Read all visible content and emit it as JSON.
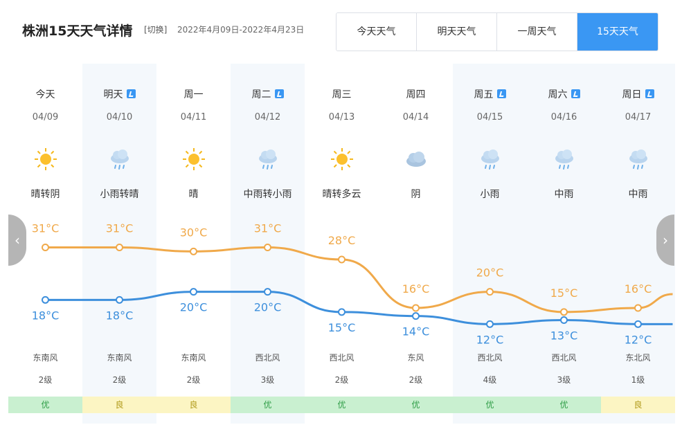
{
  "header": {
    "title": "株洲15天天气详情",
    "switch_label": "[切换]",
    "date_range": "2022年4月09日-2022年4月23日"
  },
  "tabs": [
    {
      "label": "今天天气",
      "active": false
    },
    {
      "label": "明天天气",
      "active": false
    },
    {
      "label": "一周天气",
      "active": false
    },
    {
      "label": "15天天气",
      "active": true
    }
  ],
  "nav": {
    "prev": "‹",
    "next": "›"
  },
  "colors": {
    "high": "#f0a94a",
    "low": "#3d8fdc",
    "accent": "#3a97f3"
  },
  "days": [
    {
      "name": "今天",
      "date": "04/09",
      "icon": "sun-icon",
      "weather": "晴转阴",
      "high": 31,
      "low": 18,
      "high_label": "31°C",
      "low_label": "18°C",
      "wind": "东南风",
      "level": "2级",
      "aqi": "优",
      "aqi_class": "good",
      "badge": false,
      "shade": false
    },
    {
      "name": "明天",
      "date": "04/10",
      "icon": "rain-cloud-icon",
      "weather": "小雨转晴",
      "high": 31,
      "low": 18,
      "high_label": "31°C",
      "low_label": "18°C",
      "wind": "东南风",
      "level": "2级",
      "aqi": "良",
      "aqi_class": "ok",
      "badge": true,
      "shade": true
    },
    {
      "name": "周一",
      "date": "04/11",
      "icon": "sun-icon",
      "weather": "晴",
      "high": 30,
      "low": 20,
      "high_label": "30°C",
      "low_label": "20°C",
      "wind": "东南风",
      "level": "2级",
      "aqi": "良",
      "aqi_class": "ok",
      "badge": false,
      "shade": false
    },
    {
      "name": "周二",
      "date": "04/12",
      "icon": "rain-cloud-icon",
      "weather": "中雨转小雨",
      "high": 31,
      "low": 20,
      "high_label": "31°C",
      "low_label": "20°C",
      "wind": "西北风",
      "level": "3级",
      "aqi": "优",
      "aqi_class": "good",
      "badge": true,
      "shade": true
    },
    {
      "name": "周三",
      "date": "04/13",
      "icon": "sun-icon",
      "weather": "晴转多云",
      "high": 28,
      "low": 15,
      "high_label": "28°C",
      "low_label": "15°C",
      "wind": "西北风",
      "level": "2级",
      "aqi": "优",
      "aqi_class": "good",
      "badge": false,
      "shade": false
    },
    {
      "name": "周四",
      "date": "04/14",
      "icon": "cloud-icon",
      "weather": "阴",
      "high": 16,
      "low": 14,
      "high_label": "16°C",
      "low_label": "14°C",
      "wind": "东风",
      "level": "2级",
      "aqi": "优",
      "aqi_class": "good",
      "badge": false,
      "shade": false
    },
    {
      "name": "周五",
      "date": "04/15",
      "icon": "rain-cloud-icon",
      "weather": "小雨",
      "high": 20,
      "low": 12,
      "high_label": "20°C",
      "low_label": "12°C",
      "wind": "西北风",
      "level": "4级",
      "aqi": "优",
      "aqi_class": "good",
      "badge": true,
      "shade": true
    },
    {
      "name": "周六",
      "date": "04/16",
      "icon": "rain-cloud-icon",
      "weather": "中雨",
      "high": 15,
      "low": 13,
      "high_label": "15°C",
      "low_label": "13°C",
      "wind": "西北风",
      "level": "3级",
      "aqi": "优",
      "aqi_class": "good",
      "badge": true,
      "shade": true
    },
    {
      "name": "周日",
      "date": "04/17",
      "icon": "rain-cloud-icon",
      "weather": "中雨",
      "high": 16,
      "low": 12,
      "high_label": "16°C",
      "low_label": "12°C",
      "wind": "东北风",
      "level": "1级",
      "aqi": "良",
      "aqi_class": "ok",
      "badge": true,
      "shade": true
    }
  ]
}
